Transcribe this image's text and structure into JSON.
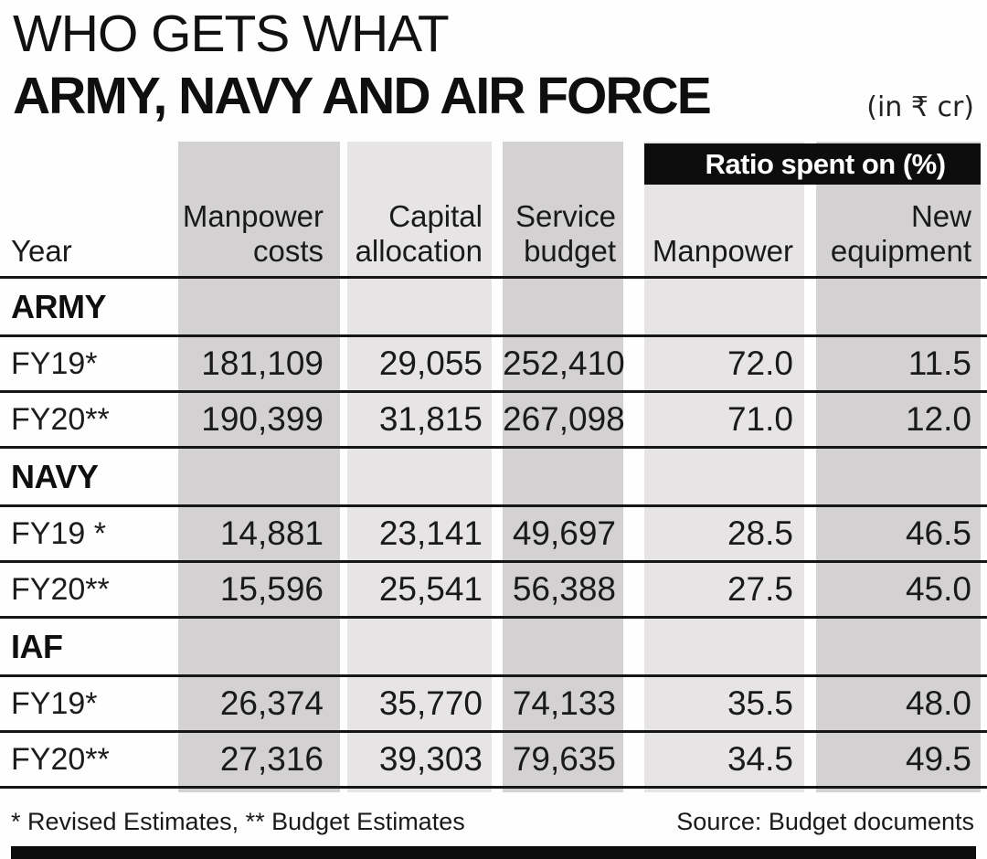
{
  "header": {
    "kicker": "WHO GETS WHAT",
    "title": "ARMY, NAVY AND AIR FORCE",
    "unit_note": "(in ₹ cr)"
  },
  "table": {
    "ratio_banner": "Ratio spent on (%)",
    "columns": [
      {
        "id": "year",
        "label_lines": [
          "Year"
        ]
      },
      {
        "id": "manpower_costs",
        "label_lines": [
          "Manpower",
          "costs"
        ]
      },
      {
        "id": "capital_allocation",
        "label_lines": [
          "Capital",
          "allocation"
        ]
      },
      {
        "id": "service_budget",
        "label_lines": [
          "Service",
          "budget"
        ]
      },
      {
        "id": "ratio_manpower",
        "label_lines": [
          "Manpower"
        ]
      },
      {
        "id": "ratio_new_equipment",
        "label_lines": [
          "New",
          "equipment"
        ]
      }
    ],
    "sections": [
      {
        "name": "ARMY",
        "rows": [
          {
            "year": "FY19*",
            "values": [
              "181,109",
              "29,055",
              "252,410",
              "72.0",
              "11.5"
            ]
          },
          {
            "year": "FY20**",
            "values": [
              "190,399",
              "31,815",
              "267,098",
              "71.0",
              "12.0"
            ]
          }
        ]
      },
      {
        "name": "NAVY",
        "rows": [
          {
            "year": "FY19 *",
            "values": [
              "14,881",
              "23,141",
              "49,697",
              "28.5",
              "46.5"
            ]
          },
          {
            "year": "FY20**",
            "values": [
              "15,596",
              "25,541",
              "56,388",
              "27.5",
              "45.0"
            ]
          }
        ]
      },
      {
        "name": "IAF",
        "rows": [
          {
            "year": "FY19*",
            "values": [
              "26,374",
              "35,770",
              "74,133",
              "35.5",
              "48.0"
            ]
          },
          {
            "year": "FY20**",
            "values": [
              "27,316",
              "39,303",
              "79,635",
              "34.5",
              "49.5"
            ]
          }
        ]
      }
    ]
  },
  "footer": {
    "footnote": "* Revised Estimates,  ** Budget Estimates",
    "source": "Source: Budget documents"
  },
  "colors": {
    "band_dark": "#d3d1d1",
    "band_light": "#e6e4e4",
    "banner_bg": "#0d0d0d",
    "banner_text": "#ffffff",
    "text": "#1c1c1c",
    "rule": "#161616"
  },
  "chart_data": {
    "type": "table",
    "title": "WHO GETS WHAT — ARMY, NAVY AND AIR FORCE",
    "unit": "₹ cr",
    "columns": [
      "Year",
      "Manpower costs",
      "Capital allocation",
      "Service budget",
      "Ratio spent on (%): Manpower",
      "Ratio spent on (%): New equipment"
    ],
    "sections": [
      {
        "name": "ARMY",
        "rows": [
          {
            "year": "FY19 (Revised Estimates)",
            "manpower_costs": 181109,
            "capital_allocation": 29055,
            "service_budget": 252410,
            "ratio_manpower_pct": 72.0,
            "ratio_new_equipment_pct": 11.5
          },
          {
            "year": "FY20 (Budget Estimates)",
            "manpower_costs": 190399,
            "capital_allocation": 31815,
            "service_budget": 267098,
            "ratio_manpower_pct": 71.0,
            "ratio_new_equipment_pct": 12.0
          }
        ]
      },
      {
        "name": "NAVY",
        "rows": [
          {
            "year": "FY19 (Revised Estimates)",
            "manpower_costs": 14881,
            "capital_allocation": 23141,
            "service_budget": 49697,
            "ratio_manpower_pct": 28.5,
            "ratio_new_equipment_pct": 46.5
          },
          {
            "year": "FY20 (Budget Estimates)",
            "manpower_costs": 15596,
            "capital_allocation": 25541,
            "service_budget": 56388,
            "ratio_manpower_pct": 27.5,
            "ratio_new_equipment_pct": 45.0
          }
        ]
      },
      {
        "name": "IAF",
        "rows": [
          {
            "year": "FY19 (Revised Estimates)",
            "manpower_costs": 26374,
            "capital_allocation": 35770,
            "service_budget": 74133,
            "ratio_manpower_pct": 35.5,
            "ratio_new_equipment_pct": 48.0
          },
          {
            "year": "FY20 (Budget Estimates)",
            "manpower_costs": 27316,
            "capital_allocation": 39303,
            "service_budget": 79635,
            "ratio_manpower_pct": 34.5,
            "ratio_new_equipment_pct": 49.5
          }
        ]
      }
    ],
    "source": "Budget documents"
  }
}
